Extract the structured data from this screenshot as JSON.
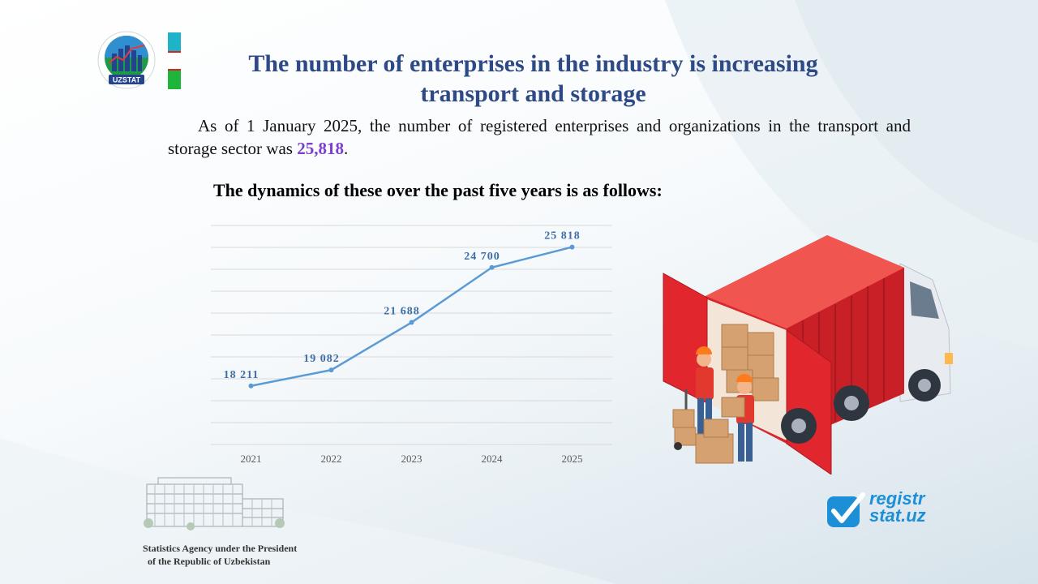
{
  "header": {
    "logo_text": "UZSTAT",
    "title_line1": "The number of enterprises in the industry is increasing",
    "title_line2": "transport and storage"
  },
  "intro": {
    "text_before": "As of 1 January 2025, the number of registered enterprises and organizations in the transport and storage sector was ",
    "highlight": "25,818",
    "text_after": "."
  },
  "subtitle": "The dynamics of these over the past five years is as follows:",
  "colors": {
    "title": "#2e4a86",
    "highlight": "#7a3fcf",
    "line": "#5b9bd5",
    "label": "#3d6ea8",
    "flag_blue": "#1eb3c8",
    "flag_white": "#ffffff",
    "flag_green": "#1fb53a"
  },
  "chart_data": {
    "type": "line",
    "x": [
      "2021",
      "2022",
      "2023",
      "2024",
      "2025"
    ],
    "series": [
      {
        "values": [
          18211,
          19082,
          21688,
          24700,
          25818
        ],
        "labels": [
          "18 211",
          "19 082",
          "21 688",
          "24 700",
          "25 818"
        ]
      }
    ],
    "ylim": [
      15000,
      27000
    ],
    "grid": true,
    "legend": "none"
  },
  "footer": {
    "agency_line1": "Statistics Agency under the President",
    "agency_line2": "of the Republic  of Uzbekistan",
    "registr_line1": "registr",
    "registr_line2": "stat.uz"
  }
}
